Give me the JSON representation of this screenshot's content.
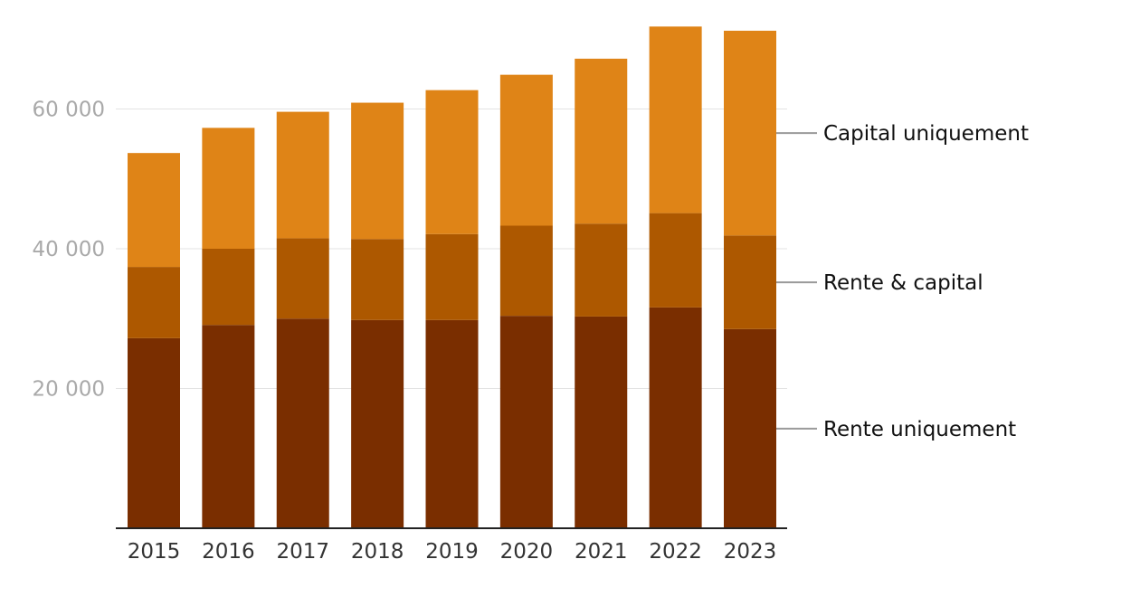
{
  "chart_data": {
    "type": "bar",
    "stacked": true,
    "title": "",
    "xlabel": "",
    "ylabel": "",
    "categories": [
      "2015",
      "2016",
      "2017",
      "2018",
      "2019",
      "2020",
      "2021",
      "2022",
      "2023"
    ],
    "series": [
      {
        "name": "Rente uniquement",
        "color": "#7a2e00",
        "values": [
          27200,
          29100,
          30000,
          29800,
          29800,
          30400,
          30300,
          31600,
          28500
        ]
      },
      {
        "name": "Rente & capital",
        "color": "#ad5800",
        "values": [
          10200,
          10900,
          11500,
          11600,
          12300,
          12900,
          13300,
          13500,
          13400
        ]
      },
      {
        "name": "Capital uniquement",
        "color": "#df8417",
        "values": [
          16300,
          17300,
          18100,
          19500,
          20600,
          21600,
          23600,
          26700,
          29300
        ]
      }
    ],
    "y_ticks": [
      20000,
      40000,
      60000
    ],
    "y_tick_labels": [
      "20 000",
      "40 000",
      "60 000"
    ],
    "ylim": [
      0,
      72000
    ],
    "grid": true,
    "legend_placement": "right, labels aligned to segments of last bar"
  }
}
